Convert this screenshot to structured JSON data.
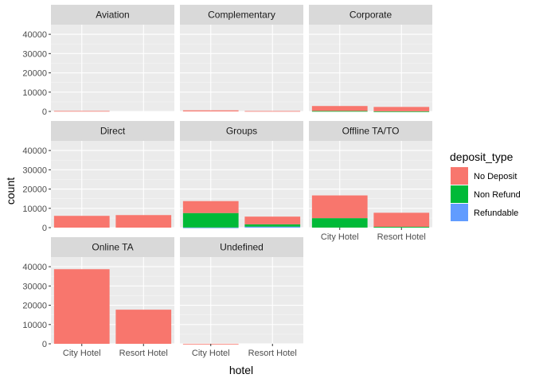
{
  "chart_data": {
    "type": "bar",
    "stacked": true,
    "facet_by": "market_segment",
    "xlabel": "hotel",
    "ylabel": "count",
    "ylim": [
      0,
      45000
    ],
    "yticks": [
      0,
      10000,
      20000,
      30000,
      40000
    ],
    "categories": [
      "City Hotel",
      "Resort Hotel"
    ],
    "legend": {
      "title": "deposit_type",
      "position": "right",
      "items": [
        {
          "name": "No Deposit",
          "color": "#F8766D"
        },
        {
          "name": "Non Refund",
          "color": "#00BA38"
        },
        {
          "name": "Refundable",
          "color": "#619CFF"
        }
      ]
    },
    "panels": [
      {
        "label": "Aviation",
        "bars": [
          {
            "hotel": "City Hotel",
            "No Deposit": 235,
            "Non Refund": 0,
            "Refundable": 0
          },
          {
            "hotel": "Resort Hotel",
            "No Deposit": 0,
            "Non Refund": 0,
            "Refundable": 0
          }
        ]
      },
      {
        "label": "Complementary",
        "bars": [
          {
            "hotel": "City Hotel",
            "No Deposit": 540,
            "Non Refund": 0,
            "Refundable": 0
          },
          {
            "hotel": "Resort Hotel",
            "No Deposit": 200,
            "Non Refund": 0,
            "Refundable": 0
          }
        ]
      },
      {
        "label": "Corporate",
        "bars": [
          {
            "hotel": "City Hotel",
            "No Deposit": 2600,
            "Non Refund": 200,
            "Refundable": 0
          },
          {
            "hotel": "Resort Hotel",
            "No Deposit": 2300,
            "Non Refund": 30,
            "Refundable": 0
          }
        ]
      },
      {
        "label": "Direct",
        "bars": [
          {
            "hotel": "City Hotel",
            "No Deposit": 6100,
            "Non Refund": 0,
            "Refundable": 0
          },
          {
            "hotel": "Resort Hotel",
            "No Deposit": 6500,
            "Non Refund": 0,
            "Refundable": 0
          }
        ]
      },
      {
        "label": "Groups",
        "bars": [
          {
            "hotel": "City Hotel",
            "No Deposit": 6200,
            "Non Refund": 7500,
            "Refundable": 50
          },
          {
            "hotel": "Resort Hotel",
            "No Deposit": 4000,
            "Non Refund": 1200,
            "Refundable": 500
          }
        ]
      },
      {
        "label": "Offline TA/TO",
        "bars": [
          {
            "hotel": "City Hotel",
            "No Deposit": 11800,
            "Non Refund": 4900,
            "Refundable": 0
          },
          {
            "hotel": "Resort Hotel",
            "No Deposit": 7300,
            "Non Refund": 400,
            "Refundable": 0
          }
        ]
      },
      {
        "label": "Online TA",
        "bars": [
          {
            "hotel": "City Hotel",
            "No Deposit": 38700,
            "Non Refund": 0,
            "Refundable": 0
          },
          {
            "hotel": "Resort Hotel",
            "No Deposit": 17700,
            "Non Refund": 0,
            "Refundable": 0
          }
        ]
      },
      {
        "label": "Undefined",
        "bars": [
          {
            "hotel": "City Hotel",
            "No Deposit": 2,
            "Non Refund": 0,
            "Refundable": 0
          },
          {
            "hotel": "Resort Hotel",
            "No Deposit": 0,
            "Non Refund": 0,
            "Refundable": 0
          }
        ]
      }
    ]
  }
}
